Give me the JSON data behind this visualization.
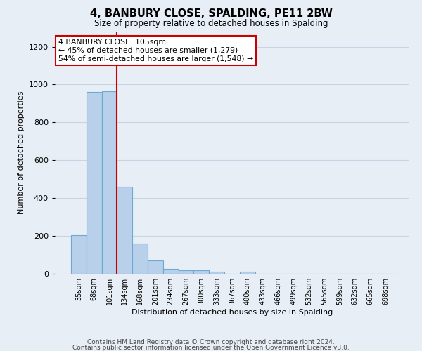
{
  "title": "4, BANBURY CLOSE, SPALDING, PE11 2BW",
  "subtitle": "Size of property relative to detached houses in Spalding",
  "xlabel": "Distribution of detached houses by size in Spalding",
  "ylabel": "Number of detached properties",
  "footnote1": "Contains HM Land Registry data © Crown copyright and database right 2024.",
  "footnote2": "Contains public sector information licensed under the Open Government Licence v3.0.",
  "annotation_line1": "4 BANBURY CLOSE: 105sqm",
  "annotation_line2": "← 45% of detached houses are smaller (1,279)",
  "annotation_line3": "54% of semi-detached houses are larger (1,548) →",
  "bar_color": "#b8d0ea",
  "bar_edge_color": "#6aaad4",
  "annotation_box_color": "#ffffff",
  "annotation_box_edge_color": "#cc0000",
  "vline_color": "#cc0000",
  "grid_color": "#c8d4e4",
  "bg_color": "#e8eef6",
  "categories": [
    "35sqm",
    "68sqm",
    "101sqm",
    "134sqm",
    "168sqm",
    "201sqm",
    "234sqm",
    "267sqm",
    "300sqm",
    "333sqm",
    "367sqm",
    "400sqm",
    "433sqm",
    "466sqm",
    "499sqm",
    "532sqm",
    "565sqm",
    "599sqm",
    "632sqm",
    "665sqm",
    "698sqm"
  ],
  "values": [
    205,
    960,
    965,
    460,
    158,
    70,
    25,
    18,
    18,
    12,
    0,
    12,
    0,
    0,
    0,
    0,
    0,
    0,
    0,
    0,
    0
  ],
  "ylim": [
    0,
    1280
  ],
  "yticks": [
    0,
    200,
    400,
    600,
    800,
    1000,
    1200
  ],
  "vline_x": 2.5
}
